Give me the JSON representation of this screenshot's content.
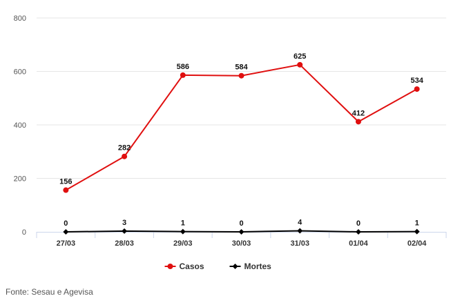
{
  "chart_data": {
    "type": "line",
    "categories": [
      "27/03",
      "28/03",
      "29/03",
      "30/03",
      "31/03",
      "01/04",
      "02/04"
    ],
    "series": [
      {
        "name": "Casos",
        "color": "#e00f0f",
        "marker": "circle",
        "values": [
          156,
          282,
          586,
          584,
          625,
          412,
          534
        ]
      },
      {
        "name": "Mortes",
        "color": "#000000",
        "marker": "diamond",
        "values": [
          0,
          3,
          1,
          0,
          4,
          0,
          1
        ]
      }
    ],
    "yticks": [
      0,
      200,
      400,
      600,
      800
    ],
    "ylim": [
      0,
      800
    ],
    "grid": true,
    "legend_position": "bottom-center",
    "title": "",
    "xlabel": "",
    "ylabel": ""
  },
  "source": "Fonte: Sesau e Agevisa"
}
